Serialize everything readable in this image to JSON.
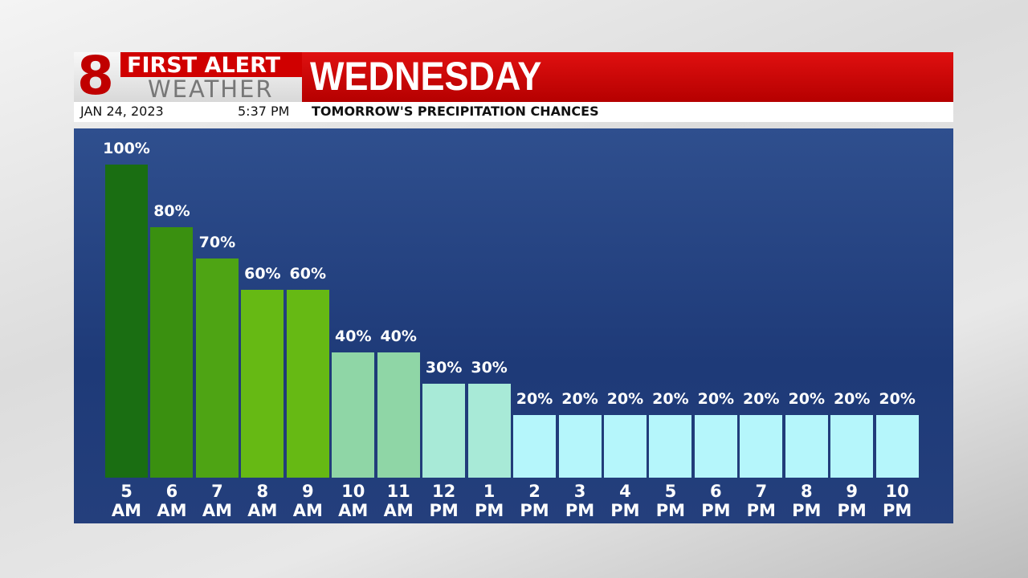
{
  "brand": {
    "number": "8",
    "line1": "FIRST ALERT",
    "line2": "WEATHER"
  },
  "date": "JAN 24, 2023",
  "time": "5:37 PM",
  "chart_data": {
    "type": "bar",
    "title": "WEDNESDAY",
    "subtitle": "TOMORROW'S PRECIPITATION CHANCES",
    "categories": [
      "5 AM",
      "6 AM",
      "7 AM",
      "8 AM",
      "9 AM",
      "10 AM",
      "11 AM",
      "12 PM",
      "1 PM",
      "2 PM",
      "3 PM",
      "4 PM",
      "5 PM",
      "6 PM",
      "7 PM",
      "8 PM",
      "9 PM",
      "10 PM"
    ],
    "values": [
      100,
      80,
      70,
      60,
      60,
      40,
      40,
      30,
      30,
      20,
      20,
      20,
      20,
      20,
      20,
      20,
      20,
      20
    ],
    "value_labels": [
      "100%",
      "80%",
      "70%",
      "60%",
      "60%",
      "40%",
      "40%",
      "30%",
      "30%",
      "20%",
      "20%",
      "20%",
      "20%",
      "20%",
      "20%",
      "20%",
      "20%",
      "20%"
    ],
    "colors": [
      "#1a6e12",
      "#3a9010",
      "#4ea414",
      "#66b914",
      "#66b914",
      "#8fd6a6",
      "#8fd6a6",
      "#a8ead7",
      "#a8ead7",
      "#b5f6fb",
      "#b5f6fb",
      "#b5f6fb",
      "#b5f6fb",
      "#b5f6fb",
      "#b5f6fb",
      "#b5f6fb",
      "#b5f6fb",
      "#b5f6fb"
    ]
  }
}
